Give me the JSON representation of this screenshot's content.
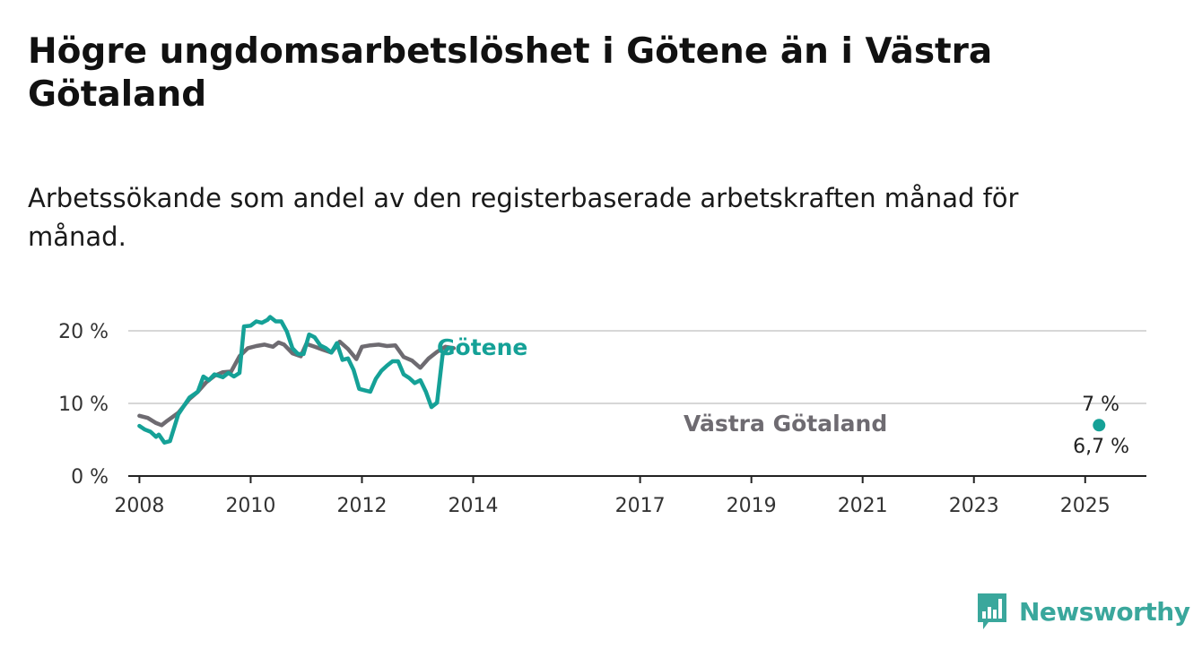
{
  "title": "Högre ungdomsarbetslöshet i Götene än i Västra Götaland",
  "subtitle": "Arbetssökande som andel av den registerbaserade arbetskraften månad för månad.",
  "brand": {
    "name": "Newsworthy",
    "icon": "newsworthy-logo-icon",
    "color": "#3aa79c"
  },
  "chart_data": {
    "type": "line",
    "title": "Högre ungdomsarbetslöshet i Götene än i Västra Götaland",
    "subtitle": "Arbetssökande som andel av den registerbaserade arbetskraften månad för månad.",
    "xlabel": "",
    "ylabel": "",
    "xlim": [
      2007.8,
      2026.1
    ],
    "ylim": [
      0,
      20
    ],
    "x_ticks": [
      2008,
      2010,
      2012,
      2014,
      2017,
      2019,
      2021,
      2023,
      2025
    ],
    "x_tick_labels": [
      "2008",
      "2010",
      "2012",
      "2014",
      "2017",
      "2019",
      "2021",
      "2023",
      "2025"
    ],
    "y_ticks": [
      0,
      10,
      20
    ],
    "y_tick_labels": [
      "0 %",
      "10 %",
      "20 %"
    ],
    "grid": "horizontal",
    "legend": "inline labels",
    "series": [
      {
        "name": "Götene",
        "color": "#15a197",
        "end_label": "7 %",
        "end_value": 7.0,
        "points": [
          [
            2008.0,
            6.9
          ],
          [
            2008.1,
            6.4
          ],
          [
            2008.2,
            6.1
          ],
          [
            2008.3,
            5.4
          ],
          [
            2008.35,
            5.7
          ],
          [
            2008.45,
            4.6
          ],
          [
            2008.55,
            4.8
          ],
          [
            2008.7,
            8.5
          ],
          [
            2008.9,
            10.8
          ],
          [
            2009.05,
            11.6
          ],
          [
            2009.15,
            13.7
          ],
          [
            2009.25,
            13.2
          ],
          [
            2009.35,
            14.0
          ],
          [
            2009.5,
            13.6
          ],
          [
            2009.6,
            14.2
          ],
          [
            2009.7,
            13.7
          ],
          [
            2009.8,
            14.2
          ],
          [
            2009.88,
            20.6
          ],
          [
            2010.0,
            20.7
          ],
          [
            2010.1,
            21.3
          ],
          [
            2010.2,
            21.1
          ],
          [
            2010.3,
            21.5
          ],
          [
            2010.35,
            21.9
          ],
          [
            2010.45,
            21.3
          ],
          [
            2010.55,
            21.3
          ],
          [
            2010.65,
            19.9
          ],
          [
            2010.75,
            17.6
          ],
          [
            2010.85,
            16.8
          ],
          [
            2010.95,
            16.8
          ],
          [
            2011.05,
            19.5
          ],
          [
            2011.15,
            19.1
          ],
          [
            2011.25,
            18.0
          ],
          [
            2011.35,
            17.6
          ],
          [
            2011.45,
            17.0
          ],
          [
            2011.55,
            18.3
          ],
          [
            2011.65,
            16.0
          ],
          [
            2011.75,
            16.2
          ],
          [
            2011.85,
            14.6
          ],
          [
            2011.95,
            12.0
          ],
          [
            2012.05,
            11.8
          ],
          [
            2012.15,
            11.6
          ],
          [
            2012.25,
            13.4
          ],
          [
            2012.35,
            14.5
          ],
          [
            2012.45,
            15.2
          ],
          [
            2012.55,
            15.8
          ],
          [
            2012.65,
            15.8
          ],
          [
            2012.75,
            14.0
          ],
          [
            2012.85,
            13.5
          ],
          [
            2012.95,
            12.8
          ],
          [
            2013.05,
            13.2
          ],
          [
            2013.15,
            11.6
          ],
          [
            2013.25,
            9.5
          ],
          [
            2013.35,
            10.1
          ],
          [
            2013.45,
            16.7
          ],
          [
            2013.55,
            17.6
          ]
        ]
      },
      {
        "name": "Västra Götaland",
        "color": "#6e6b71",
        "end_label": "6,7 %",
        "end_value": 6.7,
        "points": [
          [
            2008.0,
            8.3
          ],
          [
            2008.15,
            8.0
          ],
          [
            2008.3,
            7.3
          ],
          [
            2008.4,
            7.0
          ],
          [
            2008.5,
            7.6
          ],
          [
            2008.7,
            8.7
          ],
          [
            2008.9,
            10.6
          ],
          [
            2009.05,
            11.6
          ],
          [
            2009.2,
            12.9
          ],
          [
            2009.35,
            13.8
          ],
          [
            2009.5,
            14.3
          ],
          [
            2009.65,
            14.4
          ],
          [
            2009.8,
            16.5
          ],
          [
            2009.95,
            17.6
          ],
          [
            2010.1,
            17.9
          ],
          [
            2010.25,
            18.1
          ],
          [
            2010.4,
            17.8
          ],
          [
            2010.5,
            18.4
          ],
          [
            2010.6,
            18.1
          ],
          [
            2010.75,
            16.9
          ],
          [
            2010.9,
            16.5
          ],
          [
            2011.0,
            18.2
          ],
          [
            2011.15,
            17.8
          ],
          [
            2011.3,
            17.4
          ],
          [
            2011.45,
            17.0
          ],
          [
            2011.6,
            18.5
          ],
          [
            2011.75,
            17.5
          ],
          [
            2011.9,
            16.1
          ],
          [
            2012.0,
            17.8
          ],
          [
            2012.15,
            18.0
          ],
          [
            2012.3,
            18.1
          ],
          [
            2012.45,
            17.9
          ],
          [
            2012.6,
            18.0
          ],
          [
            2012.75,
            16.4
          ],
          [
            2012.9,
            15.9
          ],
          [
            2013.05,
            14.9
          ],
          [
            2013.2,
            16.2
          ],
          [
            2013.35,
            17.1
          ],
          [
            2013.5,
            17.8
          ],
          [
            2013.65,
            17.6
          ]
        ]
      }
    ]
  }
}
